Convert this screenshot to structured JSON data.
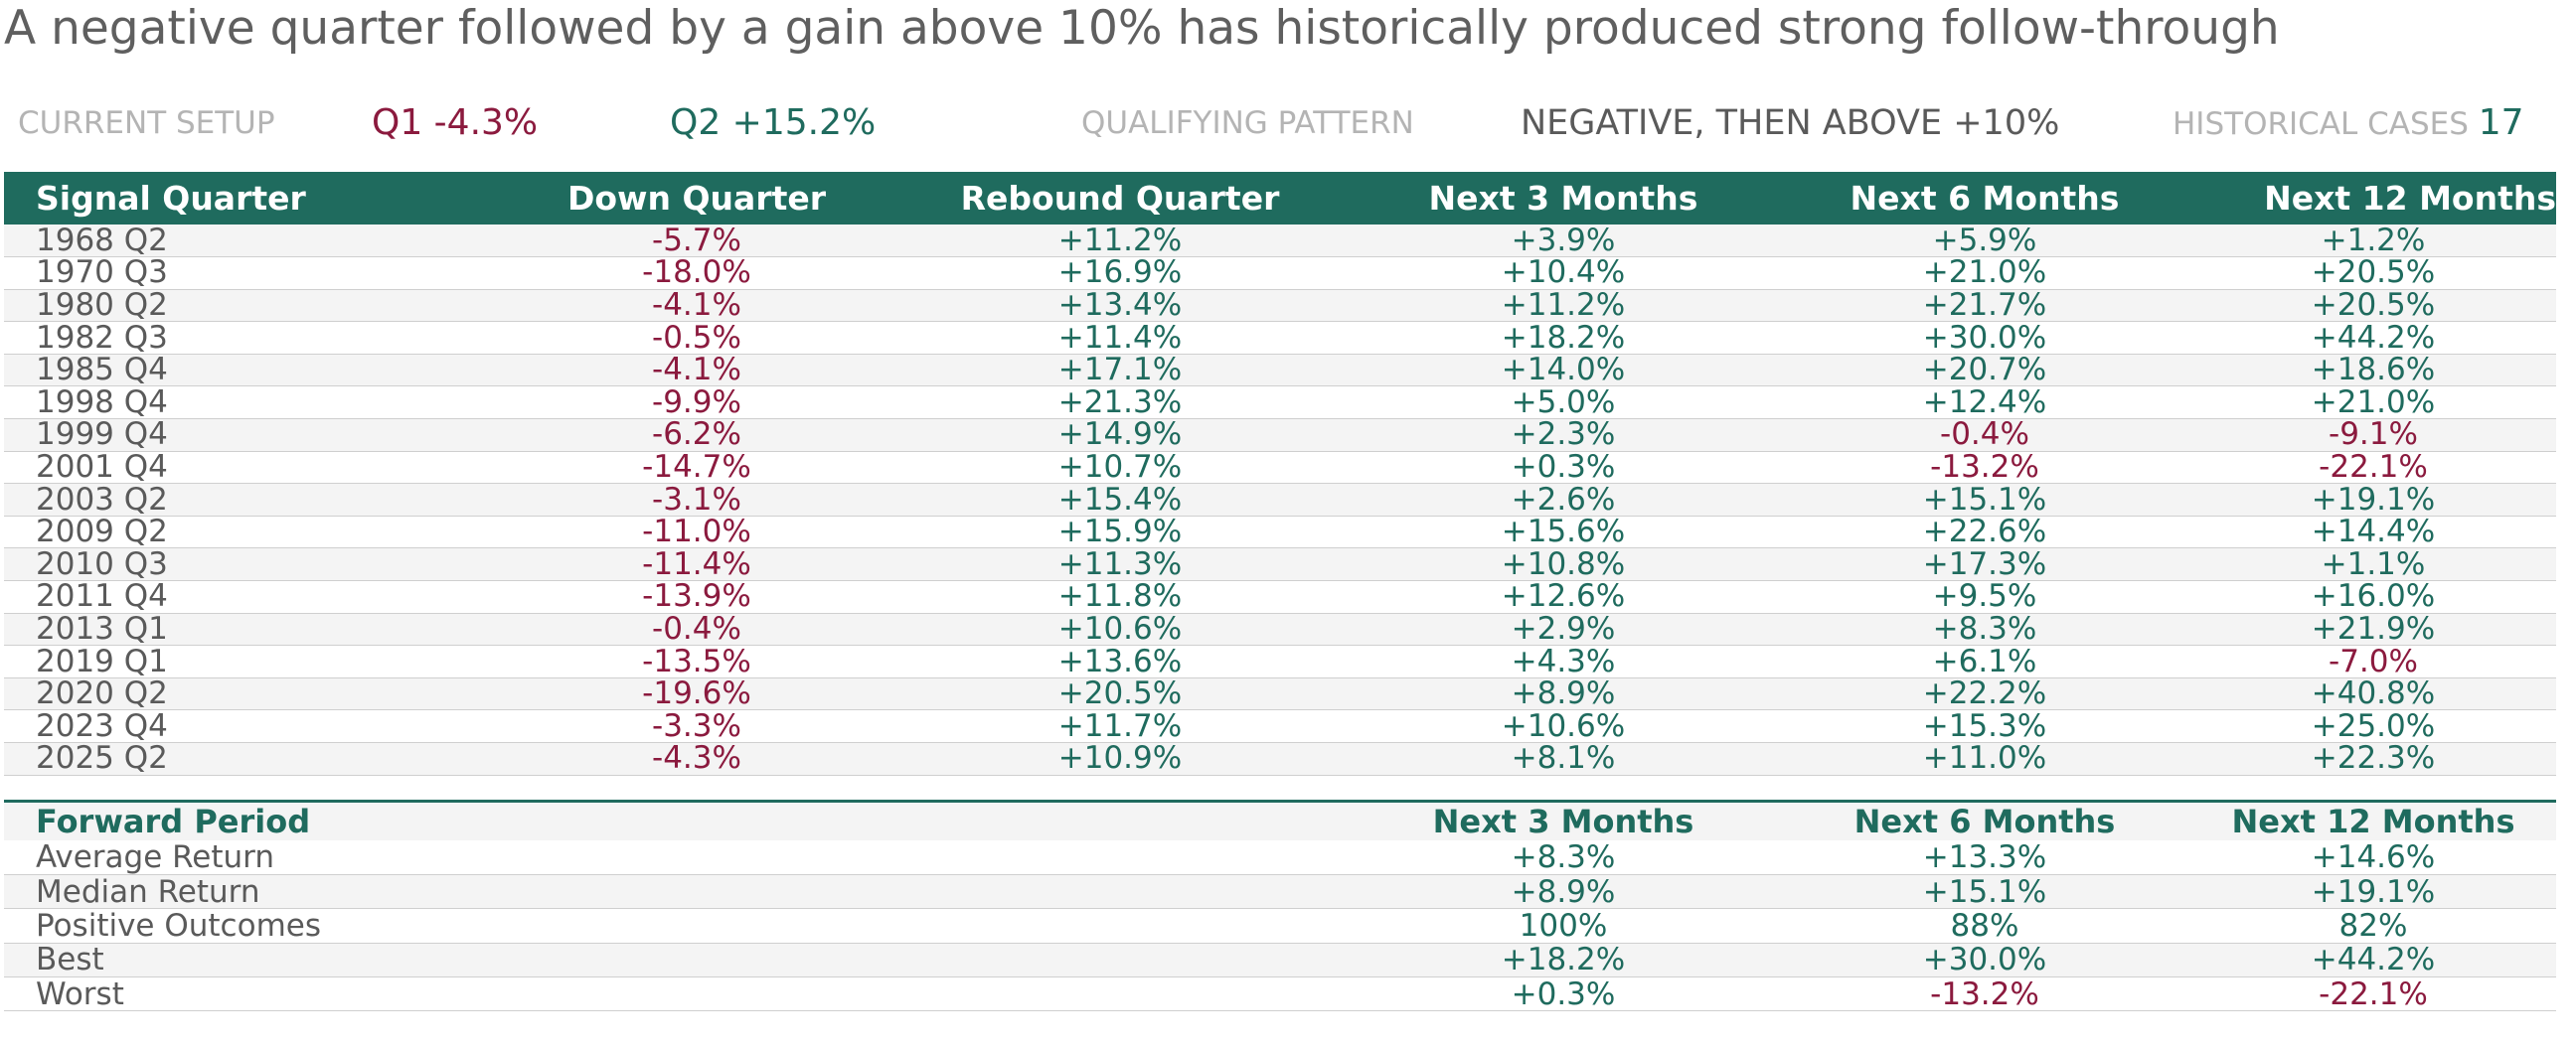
{
  "title": "A negative quarter followed by a gain above 10% has historically produced strong follow-through",
  "setup": {
    "current_label": "CURRENT SETUP",
    "q1_text": "Q1 -4.3%",
    "q2_text": "Q2 +15.2%",
    "pattern_label": "QUALIFYING PATTERN",
    "pattern_value": "NEGATIVE, THEN ABOVE +10%",
    "cases_label": "HISTORICAL CASES",
    "cases_value": "17"
  },
  "colors": {
    "header_bg": "#1f6b5e",
    "positive": "#1f6b5e",
    "negative": "#8b1a3e"
  },
  "chart_data": {
    "type": "table",
    "columns": [
      "Signal Quarter",
      "Down Quarter",
      "Rebound Quarter",
      "Next 3 Months",
      "Next 6 Months",
      "Next 12 Months"
    ],
    "rows": [
      [
        "1968 Q2",
        "-5.7%",
        "+11.2%",
        "+3.9%",
        "+5.9%",
        "+1.2%"
      ],
      [
        "1970 Q3",
        "-18.0%",
        "+16.9%",
        "+10.4%",
        "+21.0%",
        "+20.5%"
      ],
      [
        "1980 Q2",
        "-4.1%",
        "+13.4%",
        "+11.2%",
        "+21.7%",
        "+20.5%"
      ],
      [
        "1982 Q3",
        "-0.5%",
        "+11.4%",
        "+18.2%",
        "+30.0%",
        "+44.2%"
      ],
      [
        "1985 Q4",
        "-4.1%",
        "+17.1%",
        "+14.0%",
        "+20.7%",
        "+18.6%"
      ],
      [
        "1998 Q4",
        "-9.9%",
        "+21.3%",
        "+5.0%",
        "+12.4%",
        "+21.0%"
      ],
      [
        "1999 Q4",
        "-6.2%",
        "+14.9%",
        "+2.3%",
        "-0.4%",
        "-9.1%"
      ],
      [
        "2001 Q4",
        "-14.7%",
        "+10.7%",
        "+0.3%",
        "-13.2%",
        "-22.1%"
      ],
      [
        "2003 Q2",
        "-3.1%",
        "+15.4%",
        "+2.6%",
        "+15.1%",
        "+19.1%"
      ],
      [
        "2009 Q2",
        "-11.0%",
        "+15.9%",
        "+15.6%",
        "+22.6%",
        "+14.4%"
      ],
      [
        "2010 Q3",
        "-11.4%",
        "+11.3%",
        "+10.8%",
        "+17.3%",
        "+1.1%"
      ],
      [
        "2011 Q4",
        "-13.9%",
        "+11.8%",
        "+12.6%",
        "+9.5%",
        "+16.0%"
      ],
      [
        "2013 Q1",
        "-0.4%",
        "+10.6%",
        "+2.9%",
        "+8.3%",
        "+21.9%"
      ],
      [
        "2019 Q1",
        "-13.5%",
        "+13.6%",
        "+4.3%",
        "+6.1%",
        "-7.0%"
      ],
      [
        "2020 Q2",
        "-19.6%",
        "+20.5%",
        "+8.9%",
        "+22.2%",
        "+40.8%"
      ],
      [
        "2023 Q4",
        "-3.3%",
        "+11.7%",
        "+10.6%",
        "+15.3%",
        "+25.0%"
      ],
      [
        "2025 Q2",
        "-4.3%",
        "+10.9%",
        "+8.1%",
        "+11.0%",
        "+22.3%"
      ]
    ],
    "summary": {
      "columns": [
        "Forward Period",
        "",
        "",
        "Next 3 Months",
        "Next 6 Months",
        "Next 12 Months"
      ],
      "rows": [
        [
          "Average Return",
          "",
          "",
          "+8.3%",
          "+13.3%",
          "+14.6%"
        ],
        [
          "Median Return",
          "",
          "",
          "+8.9%",
          "+15.1%",
          "+19.1%"
        ],
        [
          "Positive Outcomes",
          "",
          "",
          "100%",
          "88%",
          "82%"
        ],
        [
          "Best",
          "",
          "",
          "+18.2%",
          "+30.0%",
          "+44.2%"
        ],
        [
          "Worst",
          "",
          "",
          "+0.3%",
          "-13.2%",
          "-22.1%"
        ]
      ]
    }
  }
}
